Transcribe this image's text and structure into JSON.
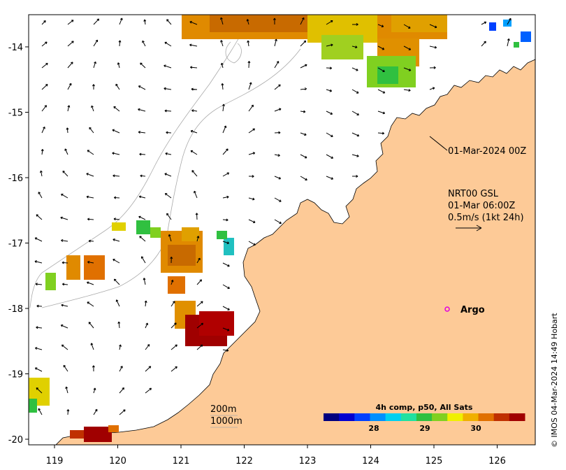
{
  "map": {
    "x_ticks": [
      "119",
      "120",
      "121",
      "122",
      "123",
      "124",
      "125",
      "126"
    ],
    "y_ticks": [
      "-14",
      "-15",
      "-16",
      "-17",
      "-18",
      "-19",
      "-20"
    ],
    "coast_label": "01-Mar-2024 00Z",
    "info_lines": [
      "NRT00 GSL",
      "01-Mar 06:00Z",
      "0.5m/s (1kt 24h)"
    ],
    "argo_label": "Argo",
    "depth_labels": [
      "200m",
      "1000m"
    ],
    "colorbar": {
      "title": "4h comp, p50, All Sats",
      "ticks": [
        "28",
        "29",
        "30"
      ]
    },
    "credit": "© IMOS 04-Mar-2024 14:49 Hobart"
  },
  "colors": {
    "land": "#fdca97",
    "argo": "#e000e0",
    "sst_scale": [
      "#00007f",
      "#0000d0",
      "#0040ff",
      "#0090ff",
      "#00d0f0",
      "#20e0a0",
      "#30c040",
      "#80d020",
      "#f0f000",
      "#f0b000",
      "#e07000",
      "#c03000",
      "#a00000"
    ]
  }
}
